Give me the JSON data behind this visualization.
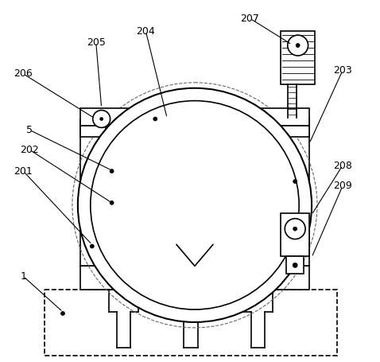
{
  "bg_color": "#ffffff",
  "line_color": "#000000",
  "dashed_color": "#666666",
  "fig_w": 4.78,
  "fig_h": 4.55,
  "dpi": 100
}
